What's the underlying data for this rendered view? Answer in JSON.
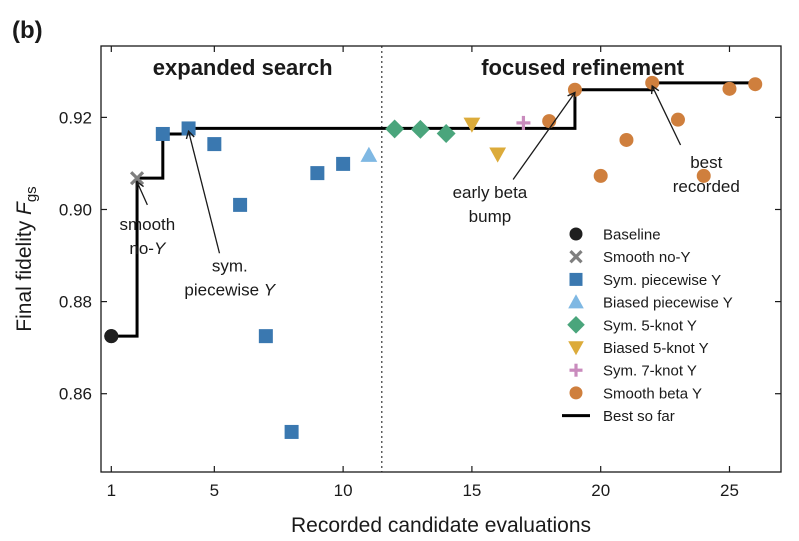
{
  "panel_label": "(b)",
  "chart_data": {
    "type": "scatter",
    "xlabel": "Recorded candidate evaluations",
    "ylabel_main": "Final fidelity ",
    "ylabel_var": "F",
    "ylabel_sub": "gs",
    "xlim": [
      0.6,
      27.0
    ],
    "ylim": [
      0.843,
      0.9355
    ],
    "xticks": [
      1,
      5,
      10,
      15,
      20,
      25
    ],
    "yticks": [
      0.86,
      0.88,
      0.9,
      0.92
    ],
    "ytick_labels": [
      "0.86",
      "0.88",
      "0.90",
      "0.92"
    ],
    "grid": false,
    "legend_position": "lower-right",
    "divider_x": 11.5,
    "regions": [
      {
        "label": "expanded search",
        "x": 6.1
      },
      {
        "label": "focused refinement",
        "x": 19.3
      }
    ],
    "series": [
      {
        "name": "Baseline",
        "marker": "circle",
        "color": "#1f1f1f",
        "points": [
          [
            1,
            0.8725
          ]
        ]
      },
      {
        "name": "Smooth no-Y",
        "marker": "x",
        "color": "#7f7f7f",
        "points": [
          [
            2,
            0.9068
          ]
        ]
      },
      {
        "name": "Sym. piecewise Y",
        "marker": "square",
        "color": "#3a78b0",
        "points": [
          [
            3,
            0.9164
          ],
          [
            4,
            0.9176
          ],
          [
            5,
            0.9142
          ],
          [
            6,
            0.901
          ],
          [
            7,
            0.8725
          ],
          [
            8,
            0.8517
          ],
          [
            9,
            0.9079
          ],
          [
            10,
            0.9099
          ]
        ]
      },
      {
        "name": "Biased piecewise Y",
        "marker": "triangle-up",
        "color": "#7fb8e3",
        "points": [
          [
            11,
            0.9118
          ]
        ]
      },
      {
        "name": "Sym. 5-knot Y",
        "marker": "diamond",
        "color": "#4aa57c",
        "points": [
          [
            12,
            0.9175
          ],
          [
            13,
            0.9174
          ],
          [
            14,
            0.9165
          ]
        ]
      },
      {
        "name": "Biased 5-knot Y",
        "marker": "triangle-down",
        "color": "#dcab3a",
        "points": [
          [
            15,
            0.9185
          ],
          [
            16,
            0.912
          ]
        ]
      },
      {
        "name": "Sym. 7-knot Y",
        "marker": "plus",
        "color": "#c98bbd",
        "points": [
          [
            17,
            0.9188
          ]
        ]
      },
      {
        "name": "Smooth beta Y",
        "marker": "circle",
        "color": "#cf7f3d",
        "points": [
          [
            18,
            0.9192
          ],
          [
            19,
            0.926
          ],
          [
            20,
            0.9073
          ],
          [
            21,
            0.9151
          ],
          [
            22,
            0.9275
          ],
          [
            23,
            0.9195
          ],
          [
            24,
            0.9073
          ],
          [
            25,
            0.9262
          ],
          [
            26,
            0.9272
          ]
        ]
      }
    ],
    "best_so_far": {
      "name": "Best so far",
      "color": "#000000",
      "x": [
        1,
        2,
        2,
        3,
        3,
        4,
        4,
        19,
        19,
        22,
        22,
        26
      ],
      "y": [
        0.8725,
        0.8725,
        0.9068,
        0.9068,
        0.9164,
        0.9164,
        0.9176,
        0.9176,
        0.926,
        0.926,
        0.9275,
        0.9275
      ]
    },
    "annotations": [
      {
        "lines": [
          "smooth",
          "no-Y"
        ],
        "italic_suffix": "Y",
        "text_x": 2.4,
        "text_y": 0.8955,
        "arrow_from": [
          2.4,
          0.901
        ],
        "arrow_to": [
          2.0,
          0.906
        ],
        "anchor": "middle"
      },
      {
        "lines": [
          "sym.",
          "piecewise Y"
        ],
        "italic_suffix": "Y",
        "text_x": 5.6,
        "text_y": 0.8865,
        "arrow_from": [
          5.2,
          0.8905
        ],
        "arrow_to": [
          4.0,
          0.917
        ],
        "anchor": "middle"
      },
      {
        "lines": [
          "early beta",
          "bump"
        ],
        "italic_suffix": "",
        "text_x": 15.7,
        "text_y": 0.9025,
        "arrow_from": [
          16.6,
          0.9065
        ],
        "arrow_to": [
          19.0,
          0.9254
        ],
        "anchor": "middle"
      },
      {
        "lines": [
          "best",
          "recorded"
        ],
        "italic_suffix": "",
        "text_x": 24.1,
        "text_y": 0.909,
        "arrow_from": [
          23.1,
          0.914
        ],
        "arrow_to": [
          22.0,
          0.9268
        ],
        "anchor": "middle"
      }
    ]
  }
}
